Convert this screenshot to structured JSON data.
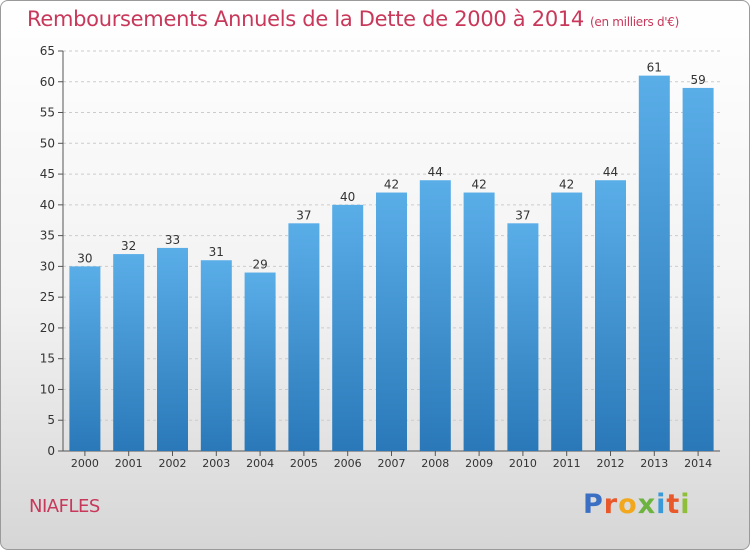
{
  "header": {
    "title": "Remboursements Annuels de la Dette de 2000 à 2014",
    "unit": "(en milliers d'€)"
  },
  "footer": {
    "town": "NIAFLES",
    "logo_letters": [
      "P",
      "r",
      "o",
      "x",
      "i",
      "t",
      "i"
    ],
    "logo_colors": [
      "#3a6fc4",
      "#e8582b",
      "#f2a81d",
      "#6db33f",
      "#3a9ad9",
      "#e8582b",
      "#8fbf3a"
    ]
  },
  "colors": {
    "bar_top": "#5aaee8",
    "bar_bottom": "#2a78b8",
    "title": "#c8385a",
    "axis": "#555555",
    "grid": "#cccccc"
  },
  "chart_data": {
    "type": "bar",
    "title": "Remboursements Annuels de la Dette de 2000 à 2014",
    "unit": "en milliers d'€",
    "categories": [
      "2000",
      "2001",
      "2002",
      "2003",
      "2004",
      "2005",
      "2006",
      "2007",
      "2008",
      "2009",
      "2010",
      "2011",
      "2012",
      "2013",
      "2014"
    ],
    "values": [
      30,
      32,
      33,
      31,
      29,
      37,
      40,
      42,
      44,
      42,
      37,
      42,
      44,
      61,
      59
    ],
    "ylim": [
      0,
      65
    ],
    "yticks": [
      0,
      5,
      10,
      15,
      20,
      25,
      30,
      35,
      40,
      45,
      50,
      55,
      60,
      65
    ],
    "grid": "horizontal dashed",
    "data_labels": true
  }
}
